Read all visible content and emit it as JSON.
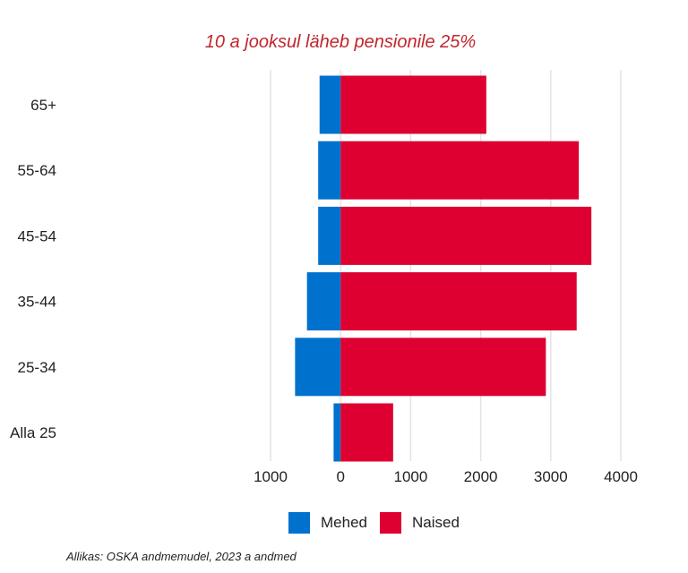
{
  "chart_data": {
    "type": "bar",
    "orientation": "horizontal",
    "title": "10 a jooksul läheb pensionile 25%",
    "categories": [
      "65+",
      "55-64",
      "45-54",
      "35-44",
      "25-34",
      "Alla 25"
    ],
    "series": [
      {
        "name": "Mehed",
        "color": "#0072CE",
        "values": [
          -300,
          -320,
          -320,
          -480,
          -650,
          -100
        ]
      },
      {
        "name": "Naised",
        "color": "#DD0031",
        "values": [
          2080,
          3400,
          3580,
          3370,
          2930,
          750
        ]
      }
    ],
    "xlim": [
      -1000,
      4000
    ],
    "x_ticks": [
      -1000,
      0,
      1000,
      2000,
      3000,
      4000
    ],
    "x_tick_labels": [
      "1000",
      "0",
      "1000",
      "2000",
      "3000",
      "4000"
    ],
    "grid": true,
    "legend_position": "bottom"
  },
  "source": "Allikas: OSKA andmemudel, 2023 a andmed"
}
